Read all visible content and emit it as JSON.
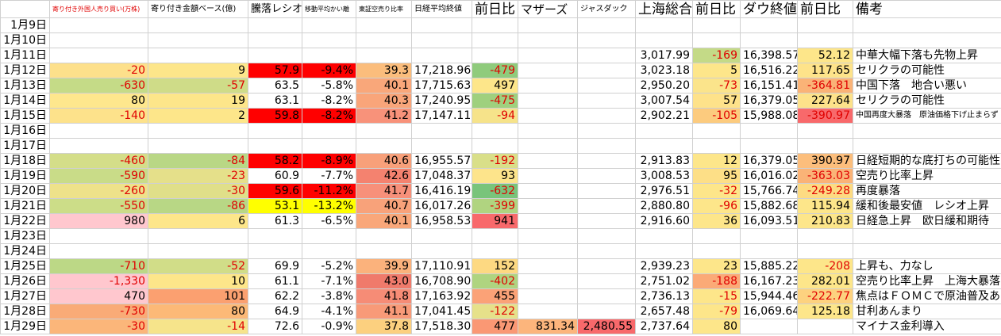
{
  "table": {
    "header": [
      null,
      "寄り付き外国人売り買い(万株)",
      "寄り付き金額ベース(億)",
      "騰落レシオ",
      "移動平均かい離",
      "東証空売り比率",
      "日経平均終値",
      "前日比",
      "マザーズ",
      "ジャスダック",
      "上海総合",
      "前日比",
      "ダウ終値",
      "前日比",
      "備考"
    ],
    "rows": [
      [
        "1月9日",
        null,
        null,
        null,
        null,
        null,
        null,
        null,
        null,
        null,
        null,
        null,
        null,
        null,
        null
      ],
      [
        "1月10日",
        null,
        null,
        null,
        null,
        null,
        null,
        null,
        null,
        null,
        null,
        null,
        null,
        null,
        null
      ],
      [
        "1月11日",
        null,
        null,
        null,
        null,
        null,
        null,
        null,
        null,
        null,
        "3,017.99",
        "-169",
        "16,398.57",
        "52.12",
        "中華大幅下落も先物上昇"
      ],
      [
        "1月12日",
        "-20",
        "9",
        "57.9",
        "-9.4%",
        "39.3",
        "17,218.96",
        "-479",
        null,
        null,
        "3,023.18",
        "5",
        "16,516.22",
        "117.65",
        "セリクラの可能性"
      ],
      [
        "1月13日",
        "-630",
        "-57",
        "63.5",
        "-5.8%",
        "40.1",
        "17,715.63",
        "497",
        null,
        null,
        "2,950.20",
        "-73",
        "16,151.41",
        "-364.81",
        "中国下落　地合い悪い"
      ],
      [
        "1月14日",
        "80",
        "19",
        "63.1",
        "-8.2%",
        "40.3",
        "17,240.95",
        "-475",
        null,
        null,
        "3,007.54",
        "57",
        "16,379.05",
        "227.64",
        "セリクラの可能性"
      ],
      [
        "1月15日",
        "-140",
        "2",
        "59.8",
        "-8.2%",
        "41.2",
        "17,147.11",
        "-94",
        null,
        null,
        "2,902.21",
        "-105",
        "15,988.08",
        "-390.97",
        "中国再度大暴落　原油価格下げ止まらず"
      ],
      [
        "1月16日",
        null,
        null,
        null,
        null,
        null,
        null,
        null,
        null,
        null,
        null,
        null,
        null,
        null,
        null
      ],
      [
        "1月17日",
        null,
        null,
        null,
        null,
        null,
        null,
        null,
        null,
        null,
        null,
        null,
        null,
        null,
        null
      ],
      [
        "1月18日",
        "-460",
        "-84",
        "58.2",
        "-8.9%",
        "40.6",
        "16,955.57",
        "-192",
        null,
        null,
        "2,913.83",
        "12",
        "16,379.05",
        "390.97",
        "日経短期的な底打ちの可能性"
      ],
      [
        "1月19日",
        "-590",
        "-23",
        "60.9",
        "-7.7%",
        "42.6",
        "17,048.37",
        "93",
        null,
        null,
        "3,008.53",
        "95",
        "16,016.02",
        "-363.03",
        "空売り比率上昇"
      ],
      [
        "1月20日",
        "-260",
        "-30",
        "59.6",
        "-11.2%",
        "41.7",
        "16,416.19",
        "-632",
        null,
        null,
        "2,976.51",
        "-32",
        "15,766.74",
        "-249.28",
        "再度暴落"
      ],
      [
        "1月21日",
        "-550",
        "-86",
        "53.1",
        "-13.2%",
        "40.7",
        "16,017.26",
        "-399",
        null,
        null,
        "2,880.80",
        "-96",
        "15,882.68",
        "115.94",
        "緩和後最安値　レシオ上昇"
      ],
      [
        "1月22日",
        "980",
        "6",
        "61.3",
        "-6.5%",
        "40.1",
        "16,958.53",
        "941",
        null,
        null,
        "2,916.60",
        "36",
        "16,093.51",
        "210.83",
        "日経急上昇　欧日緩和期待"
      ],
      [
        "1月23日",
        null,
        null,
        null,
        null,
        null,
        null,
        null,
        null,
        null,
        null,
        null,
        null,
        null,
        null
      ],
      [
        "1月24日",
        null,
        null,
        null,
        null,
        null,
        null,
        null,
        null,
        null,
        null,
        null,
        null,
        null,
        null
      ],
      [
        "1月25日",
        "-710",
        "-52",
        "69.9",
        "-5.2%",
        "39.9",
        "17,110.91",
        "152",
        null,
        null,
        "2,939.23",
        "23",
        "15,885.22",
        "-208",
        "上昇も、力なし"
      ],
      [
        "1月26日",
        "-1,330",
        "10",
        "61.1",
        "-7.1%",
        "43.0",
        "16,708.90",
        "-402",
        null,
        null,
        "2,751.02",
        "-188",
        "16,167.23",
        "282.01",
        "空売り比率上昇　上海大暴落"
      ],
      [
        "1月27日",
        "470",
        "101",
        "62.2",
        "-3.8%",
        "41.8",
        "17,163.92",
        "455",
        null,
        null,
        "2,736.13",
        "-15",
        "15,944.46",
        "-222.77",
        "焦点はＦＯＭＣで原油普及あるか"
      ],
      [
        "1月28日",
        "-730",
        "80",
        "64.9",
        "-4.1%",
        "41.1",
        "17,041.45",
        "-122",
        null,
        null,
        "2,657.48",
        "-79",
        "16,069.64",
        "125.18",
        "甘利あんまり"
      ],
      [
        "1月29日",
        "-30",
        "-14",
        "72.6",
        "-0.9%",
        "37.8",
        "17,518.30",
        "477",
        "831.34",
        "2,480.55",
        "2,737.64",
        "80",
        null,
        null,
        "マイナス金利導入"
      ]
    ]
  }
}
